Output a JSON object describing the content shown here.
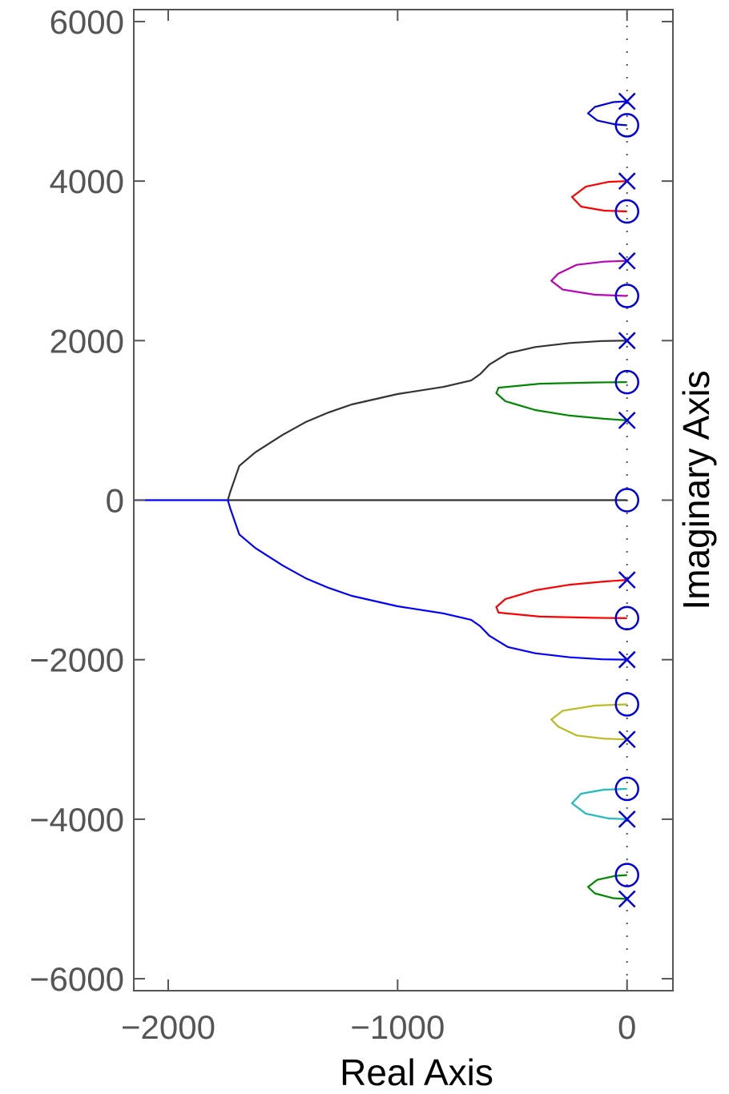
{
  "chart_data": {
    "type": "scatter",
    "subtype": "root-locus",
    "title": "",
    "xlabel": "Real Axis",
    "ylabel": "Imaginary Axis",
    "xlim": [
      -2150,
      200
    ],
    "ylim": [
      -6150,
      6150
    ],
    "x_ticks": [
      -2000,
      -1000,
      0
    ],
    "x_tick_labels": [
      "−2000",
      "−1000",
      "0"
    ],
    "y_ticks": [
      6000,
      4000,
      2000,
      0,
      -2000,
      -4000,
      -6000
    ],
    "y_tick_labels": [
      "6000",
      "4000",
      "2000",
      "0",
      "−2000",
      "−4000",
      "−6000"
    ],
    "ylabel_position": "right",
    "grid": false,
    "guide_line": {
      "axis": "imaginary",
      "at_real": 0,
      "style": "dotted"
    },
    "poles": {
      "marker": "x",
      "color": "#0000dd",
      "points": [
        [
          0,
          5000
        ],
        [
          0,
          4000
        ],
        [
          0,
          3000
        ],
        [
          0,
          2000
        ],
        [
          0,
          1000
        ],
        [
          0,
          -1000
        ],
        [
          0,
          -2000
        ],
        [
          0,
          -3000
        ],
        [
          0,
          -4000
        ],
        [
          0,
          -5000
        ]
      ]
    },
    "zeros": {
      "marker": "o",
      "color": "#0000dd",
      "points": [
        [
          0,
          4700
        ],
        [
          0,
          3620
        ],
        [
          0,
          2560
        ],
        [
          0,
          1480
        ],
        [
          0,
          0
        ],
        [
          0,
          -1480
        ],
        [
          0,
          -2560
        ],
        [
          0,
          -3620
        ],
        [
          0,
          -4700
        ]
      ]
    },
    "branches": [
      {
        "color": "#0000dd",
        "points": [
          [
            0,
            5000
          ],
          [
            -60,
            4990
          ],
          [
            -140,
            4930
          ],
          [
            -170,
            4850
          ],
          [
            -130,
            4760
          ],
          [
            -50,
            4710
          ],
          [
            0,
            4700
          ]
        ]
      },
      {
        "color": "#ff0000",
        "points": [
          [
            0,
            4000
          ],
          [
            -80,
            3990
          ],
          [
            -180,
            3930
          ],
          [
            -240,
            3800
          ],
          [
            -200,
            3680
          ],
          [
            -100,
            3630
          ],
          [
            0,
            3620
          ]
        ]
      },
      {
        "color": "#bb00bb",
        "points": [
          [
            0,
            3000
          ],
          [
            -100,
            2990
          ],
          [
            -220,
            2950
          ],
          [
            -300,
            2840
          ],
          [
            -330,
            2750
          ],
          [
            -280,
            2640
          ],
          [
            -140,
            2575
          ],
          [
            0,
            2560
          ]
        ]
      },
      {
        "color": "#333333",
        "points": [
          [
            0,
            2000
          ],
          [
            -110,
            1995
          ],
          [
            -250,
            1970
          ],
          [
            -400,
            1920
          ],
          [
            -520,
            1840
          ],
          [
            -600,
            1700
          ],
          [
            -640,
            1580
          ],
          [
            -680,
            1500
          ],
          [
            -800,
            1420
          ],
          [
            -1000,
            1330
          ],
          [
            -1200,
            1200
          ],
          [
            -1300,
            1100
          ],
          [
            -1400,
            980
          ],
          [
            -1500,
            820
          ],
          [
            -1620,
            600
          ],
          [
            -1690,
            430
          ],
          [
            -1730,
            100
          ],
          [
            -1740,
            0
          ],
          [
            0,
            0
          ]
        ]
      },
      {
        "color": "#008800",
        "points": [
          [
            0,
            1480
          ],
          [
            -150,
            1475
          ],
          [
            -380,
            1460
          ],
          [
            -560,
            1410
          ],
          [
            -570,
            1340
          ],
          [
            -530,
            1240
          ],
          [
            -400,
            1130
          ],
          [
            -250,
            1060
          ],
          [
            -100,
            1020
          ],
          [
            0,
            1000
          ]
        ]
      },
      {
        "color": "#ff0000",
        "points": [
          [
            0,
            -1000
          ],
          [
            -100,
            -1020
          ],
          [
            -250,
            -1060
          ],
          [
            -400,
            -1130
          ],
          [
            -530,
            -1240
          ],
          [
            -570,
            -1340
          ],
          [
            -560,
            -1410
          ],
          [
            -380,
            -1460
          ],
          [
            -150,
            -1475
          ],
          [
            0,
            -1480
          ]
        ]
      },
      {
        "color": "#0000ff",
        "points": [
          [
            -2150,
            0
          ],
          [
            -1740,
            0
          ],
          [
            -1730,
            -100
          ],
          [
            -1690,
            -430
          ],
          [
            -1620,
            -600
          ],
          [
            -1500,
            -820
          ],
          [
            -1400,
            -980
          ],
          [
            -1300,
            -1100
          ],
          [
            -1200,
            -1200
          ],
          [
            -1000,
            -1330
          ],
          [
            -800,
            -1420
          ],
          [
            -680,
            -1500
          ],
          [
            -640,
            -1580
          ],
          [
            -600,
            -1700
          ],
          [
            -520,
            -1840
          ],
          [
            -400,
            -1920
          ],
          [
            -250,
            -1970
          ],
          [
            -110,
            -1995
          ],
          [
            0,
            -2000
          ]
        ]
      },
      {
        "color": "#bbbb22",
        "points": [
          [
            0,
            -2560
          ],
          [
            -140,
            -2575
          ],
          [
            -280,
            -2640
          ],
          [
            -330,
            -2750
          ],
          [
            -300,
            -2840
          ],
          [
            -220,
            -2950
          ],
          [
            -100,
            -2990
          ],
          [
            0,
            -3000
          ]
        ]
      },
      {
        "color": "#22bbbb",
        "points": [
          [
            0,
            -3620
          ],
          [
            -100,
            -3630
          ],
          [
            -200,
            -3680
          ],
          [
            -240,
            -3800
          ],
          [
            -180,
            -3930
          ],
          [
            -80,
            -3990
          ],
          [
            0,
            -4000
          ]
        ]
      },
      {
        "color": "#008800",
        "points": [
          [
            0,
            -4700
          ],
          [
            -50,
            -4710
          ],
          [
            -130,
            -4760
          ],
          [
            -170,
            -4850
          ],
          [
            -140,
            -4930
          ],
          [
            -60,
            -4990
          ],
          [
            0,
            -5000
          ]
        ]
      }
    ]
  }
}
